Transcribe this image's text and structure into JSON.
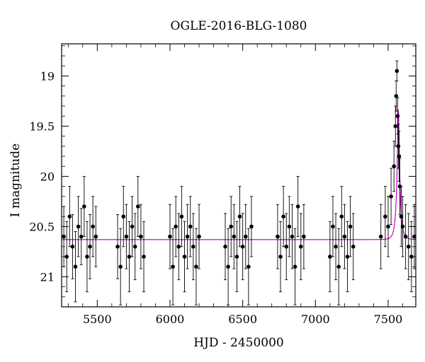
{
  "chart_data": {
    "type": "scatter",
    "title": "OGLE-2016-BLG-1080",
    "xlabel": "HJD - 2450000",
    "ylabel": "I magnitude",
    "xlim": [
      5255,
      7690
    ],
    "ylim": [
      21.3,
      18.68
    ],
    "y_inverted": true,
    "grid": false,
    "xticks": [
      5500,
      6000,
      6500,
      7000,
      7500
    ],
    "xtick_labels": [
      "5500",
      "6000",
      "6500",
      "7000",
      "7500"
    ],
    "yticks": [
      19,
      19.5,
      20,
      20.5,
      21
    ],
    "ytick_labels": [
      "19",
      "19.5",
      "20",
      "20.5",
      "21"
    ],
    "colors": {
      "data": "#000000",
      "model": "#cc00cc"
    },
    "model": {
      "name": "",
      "baseline": 20.63,
      "peak_mag": 19.25,
      "t0": 7570,
      "tE": 22,
      "u0": 0.16
    },
    "series": [
      {
        "name": "",
        "x": [
          5270,
          5290,
          5310,
          5330,
          5350,
          5370,
          5390,
          5410,
          5430,
          5450,
          5470,
          5490,
          5640,
          5660,
          5680,
          5700,
          5720,
          5740,
          5760,
          5780,
          5800,
          5820,
          6000,
          6020,
          6040,
          6060,
          6080,
          6100,
          6120,
          6140,
          6160,
          6180,
          6200,
          6380,
          6400,
          6420,
          6440,
          6460,
          6480,
          6500,
          6520,
          6540,
          6560,
          6740,
          6760,
          6780,
          6800,
          6820,
          6840,
          6860,
          6880,
          6900,
          6920,
          7100,
          7120,
          7140,
          7160,
          7180,
          7200,
          7220,
          7240,
          7260,
          7450,
          7480,
          7500,
          7520,
          7540,
          7550,
          7555,
          7560,
          7565,
          7570,
          7575,
          7580,
          7590,
          7600,
          7620,
          7640,
          7660,
          7680
        ],
        "y": [
          20.6,
          20.8,
          20.4,
          20.7,
          20.9,
          20.5,
          20.6,
          20.3,
          20.8,
          20.7,
          20.5,
          20.6,
          20.7,
          20.9,
          20.4,
          20.6,
          20.8,
          20.5,
          20.7,
          20.3,
          20.6,
          20.8,
          20.6,
          20.9,
          20.5,
          20.7,
          20.4,
          20.8,
          20.6,
          20.5,
          20.7,
          20.9,
          20.6,
          20.7,
          20.9,
          20.5,
          20.6,
          20.8,
          20.4,
          20.7,
          20.6,
          20.9,
          20.5,
          20.6,
          20.8,
          20.4,
          20.7,
          20.5,
          20.6,
          20.9,
          20.3,
          20.7,
          20.6,
          20.8,
          20.5,
          20.7,
          20.9,
          20.4,
          20.6,
          20.8,
          20.5,
          20.7,
          20.6,
          20.4,
          20.5,
          20.2,
          19.9,
          19.5,
          19.2,
          18.95,
          19.4,
          19.7,
          19.8,
          20.1,
          20.4,
          20.5,
          20.6,
          20.7,
          20.8,
          20.6
        ],
        "yerr": [
          0.3,
          0.35,
          0.3,
          0.32,
          0.35,
          0.3,
          0.28,
          0.3,
          0.35,
          0.32,
          0.3,
          0.3,
          0.32,
          0.38,
          0.3,
          0.32,
          0.35,
          0.3,
          0.33,
          0.3,
          0.32,
          0.35,
          0.32,
          0.38,
          0.3,
          0.33,
          0.3,
          0.35,
          0.32,
          0.3,
          0.33,
          0.38,
          0.32,
          0.33,
          0.38,
          0.3,
          0.32,
          0.35,
          0.3,
          0.33,
          0.32,
          0.38,
          0.3,
          0.32,
          0.35,
          0.3,
          0.33,
          0.3,
          0.32,
          0.38,
          0.3,
          0.33,
          0.32,
          0.35,
          0.3,
          0.33,
          0.38,
          0.3,
          0.32,
          0.35,
          0.3,
          0.33,
          0.32,
          0.3,
          0.3,
          0.28,
          0.25,
          0.2,
          0.15,
          0.1,
          0.18,
          0.22,
          0.25,
          0.28,
          0.3,
          0.3,
          0.32,
          0.33,
          0.35,
          0.32
        ]
      }
    ]
  }
}
